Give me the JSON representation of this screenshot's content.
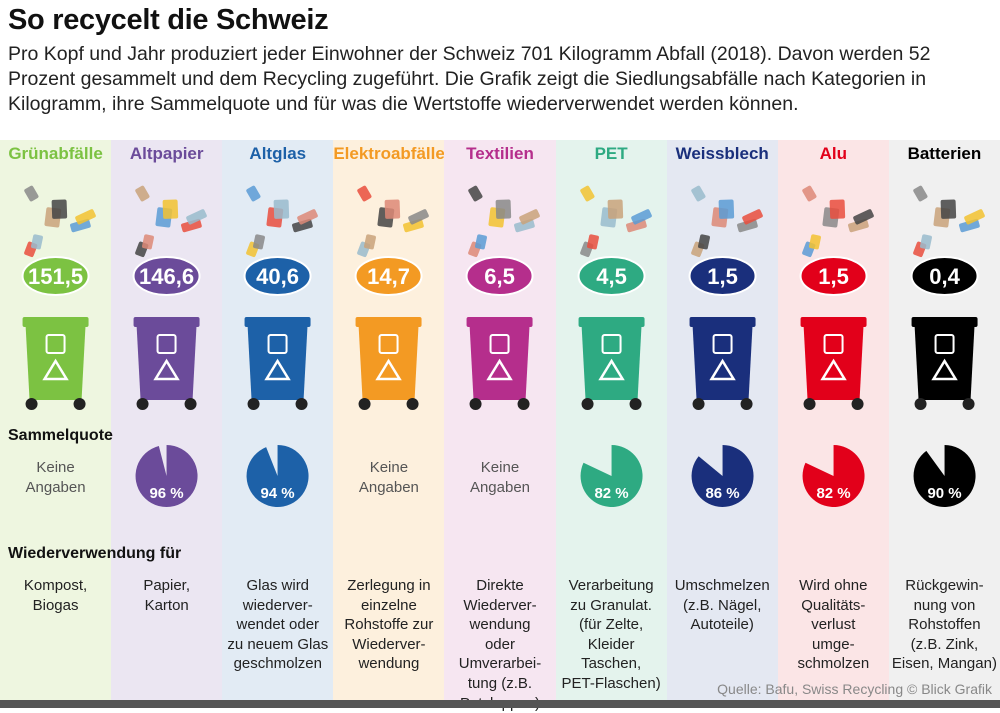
{
  "title": "So recycelt die Schweiz",
  "subtitle": "Pro Kopf und Jahr produziert jeder Einwohner der Schweiz 701 Kilogramm Abfall (2018). Davon werden 52 Prozent gesammelt und dem Recycling zugeführt. Die Grafik zeigt die Siedlungsabfälle nach Kategorien in Kilogramm, ihre Sammelquote und für was die Wertstoffe wiederverwendet werden können.",
  "labels": {
    "sammelquote": "Sammelquote",
    "wiederverwendung": "Wiederverwendung für"
  },
  "source": "Quelle: Bafu, Swiss Recycling  © Blick Grafik",
  "chart_data": {
    "type": "table",
    "columns": [
      {
        "name": "Grünabfälle",
        "kg": "151,5",
        "value": 151.5,
        "quote": null,
        "quote_text": "Keine\nAngaben",
        "reuse": "Kompost,\nBiogas",
        "color": "#7cc242",
        "bg": "#eef6e0"
      },
      {
        "name": "Altpapier",
        "kg": "146,6",
        "value": 146.6,
        "quote": 96,
        "quote_text": "96 %",
        "reuse": "Papier,\nKarton",
        "color": "#6b4b9a",
        "bg": "#ebe6f2"
      },
      {
        "name": "Altglas",
        "kg": "40,6",
        "value": 40.6,
        "quote": 94,
        "quote_text": "94 %",
        "reuse": "Glas wird\nwiederver-\nwendet oder\nzu neuem Glas\ngeschmolzen",
        "color": "#1d61a8",
        "bg": "#e2ebf4"
      },
      {
        "name": "Elektroabfälle",
        "kg": "14,7",
        "value": 14.7,
        "quote": null,
        "quote_text": "Keine\nAngaben",
        "reuse": "Zerlegung in\neinzelne\nRohstoffe zur\nWiederver-\nwendung",
        "color": "#f39a23",
        "bg": "#fdf0dd"
      },
      {
        "name": "Textilien",
        "kg": "6,5",
        "value": 6.5,
        "quote": null,
        "quote_text": "Keine\nAngaben",
        "reuse": "Direkte\nWiederver-\nwendung\noder\nUmverarbei-\ntung (z.B.\nPutzlappen)",
        "color": "#b52e8c",
        "bg": "#f6e6f1"
      },
      {
        "name": "PET",
        "kg": "4,5",
        "value": 4.5,
        "quote": 82,
        "quote_text": "82 %",
        "reuse": "Verarbeitung\nzu Granulat.\n(für Zelte,\nKleider\nTaschen,\nPET-Flaschen)",
        "color": "#2eaa82",
        "bg": "#e4f3ed"
      },
      {
        "name": "Weissblech",
        "kg": "1,5",
        "value": 1.5,
        "quote": 86,
        "quote_text": "86 %",
        "reuse": "Umschmelzen\n(z.B. Nägel,\nAutoteile)",
        "color": "#1a2f7c",
        "bg": "#e4e8f2"
      },
      {
        "name": "Alu",
        "kg": "1,5",
        "value": 1.5,
        "quote": 82,
        "quote_text": "82 %",
        "reuse": "Wird ohne\nQualitäts-\nverlust\numge-\nschmolzen",
        "color": "#e2001a",
        "bg": "#fbe5e6"
      },
      {
        "name": "Batterien",
        "kg": "0,4",
        "value": 0.4,
        "quote": 90,
        "quote_text": "90 %",
        "reuse": "Rückgewin-\nnung von\nRohstoffen\n(z.B. Zink,\nEisen, Mangan)",
        "color": "#000000",
        "bg": "#f0f0f0"
      }
    ]
  }
}
